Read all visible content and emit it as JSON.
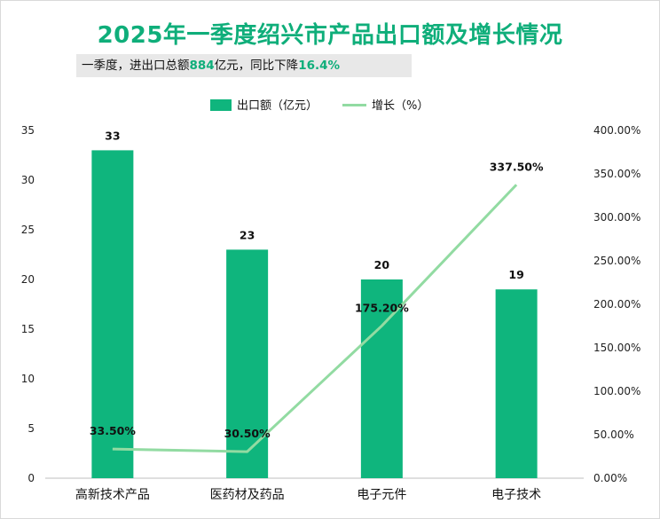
{
  "title": "2025年一季度绍兴市产品出口额及增长情况",
  "subtitle": {
    "prefix": "一季度，进出口总额",
    "amount": "884",
    "middle": "亿元，同比下降",
    "rate": "16.4%"
  },
  "colors": {
    "bar": "#0fb57d",
    "line": "#92dba2",
    "title": "#0fae7a"
  },
  "chart_data": {
    "type": "bar",
    "categories": [
      "高新技术产品",
      "医药材及药品",
      "电子元件",
      "电子技术"
    ],
    "series": [
      {
        "name": "出口额（亿元）",
        "type": "bar",
        "axis": "left",
        "values": [
          33,
          23,
          20,
          19
        ]
      },
      {
        "name": "增长（%）",
        "type": "line",
        "axis": "right",
        "values": [
          33.5,
          30.5,
          175.2,
          337.5
        ]
      }
    ],
    "bar_labels": [
      "33",
      "23",
      "20",
      "19"
    ],
    "line_labels": [
      "33.50%",
      "30.50%",
      "175.20%",
      "337.50%"
    ],
    "y_left": {
      "min": 0,
      "max": 35,
      "ticks": [
        "0",
        "5",
        "10",
        "15",
        "20",
        "25",
        "30",
        "35"
      ]
    },
    "y_right": {
      "min": 0,
      "max": 400,
      "ticks": [
        "0.00%",
        "50.00%",
        "100.00%",
        "150.00%",
        "200.00%",
        "250.00%",
        "300.00%",
        "350.00%",
        "400.00%"
      ]
    },
    "grid": false,
    "legend_position": "top"
  }
}
